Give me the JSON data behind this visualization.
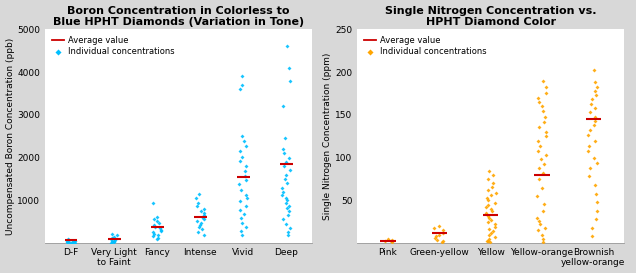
{
  "chart1": {
    "title": "Boron Concentration in Colorless to\nBlue HPHT Diamonds (Variation in Tone)",
    "ylabel": "Uncompensated Boron Concentration (ppb)",
    "categories": [
      "D-F",
      "Very Light\nto Faint",
      "Fancy",
      "Intense",
      "Vivid",
      "Deep"
    ],
    "averages": [
      75,
      100,
      380,
      620,
      1550,
      1850
    ],
    "points": [
      [
        5,
        8,
        10,
        12,
        15,
        18,
        20,
        25,
        30,
        35,
        40,
        50,
        60,
        80,
        100
      ],
      [
        10,
        20,
        30,
        40,
        50,
        70,
        90,
        110,
        130,
        150,
        180,
        220
      ],
      [
        100,
        130,
        160,
        190,
        220,
        250,
        280,
        310,
        350,
        390,
        430,
        470,
        520,
        570,
        620,
        950
      ],
      [
        200,
        260,
        320,
        380,
        430,
        480,
        520,
        560,
        600,
        650,
        700,
        750,
        800,
        870,
        950,
        1050,
        1150
      ],
      [
        180,
        280,
        380,
        480,
        580,
        680,
        780,
        880,
        980,
        1050,
        1130,
        1250,
        1380,
        1480,
        1580,
        1680,
        1800,
        1920,
        2020,
        2150,
        2280,
        2400,
        2500,
        3600,
        3700,
        3900
      ],
      [
        180,
        260,
        360,
        460,
        560,
        660,
        750,
        820,
        880,
        940,
        1000,
        1060,
        1120,
        1200,
        1300,
        1400,
        1500,
        1600,
        1700,
        1800,
        1900,
        2000,
        2100,
        2200,
        2460,
        3200,
        3800,
        4100,
        4620
      ]
    ],
    "ylim": [
      0,
      5000
    ],
    "yticks": [
      0,
      1000,
      2000,
      3000,
      4000,
      5000
    ],
    "dot_color": "#00BFFF",
    "avg_color": "#CC0000",
    "bg_color": "#ffffff"
  },
  "chart2": {
    "title": "Single Nitrogen Concentration vs.\nHPHT Diamond Color",
    "ylabel": "Single Nitrogen Concentration (ppm)",
    "categories": [
      "Pink",
      "Green-yellow",
      "Yellow",
      "Yellow-orange",
      "Brownish\nyellow-orange"
    ],
    "averages": [
      2,
      12,
      33,
      80,
      145
    ],
    "points": [
      [
        1,
        2,
        3,
        4,
        5
      ],
      [
        1,
        2,
        4,
        6,
        8,
        10,
        12,
        15,
        18,
        20
      ],
      [
        1,
        2,
        3,
        5,
        7,
        9,
        12,
        14,
        17,
        19,
        22,
        25,
        27,
        30,
        32,
        35,
        38,
        40,
        42,
        45,
        47,
        50,
        53,
        56,
        59,
        62,
        66,
        70,
        75,
        80,
        84
      ],
      [
        1,
        5,
        10,
        15,
        18,
        22,
        26,
        30,
        38,
        46,
        55,
        65,
        75,
        82,
        88,
        93,
        98,
        103,
        108,
        114,
        120,
        125,
        130,
        136,
        142,
        148,
        154,
        160,
        165,
        170,
        176,
        183,
        190
      ],
      [
        8,
        18,
        28,
        38,
        48,
        58,
        68,
        78,
        88,
        94,
        100,
        108,
        114,
        120,
        126,
        132,
        138,
        143,
        148,
        153,
        158,
        163,
        168,
        173,
        178,
        183,
        188,
        202
      ]
    ],
    "ylim": [
      0,
      250
    ],
    "yticks": [
      0,
      50,
      100,
      150,
      200,
      250
    ],
    "dot_color": "#FFA500",
    "avg_color": "#CC0000",
    "bg_color": "#ffffff"
  },
  "background_color": "#d8d8d8",
  "title_fontsize": 8,
  "label_fontsize": 6.5,
  "tick_fontsize": 6.5
}
